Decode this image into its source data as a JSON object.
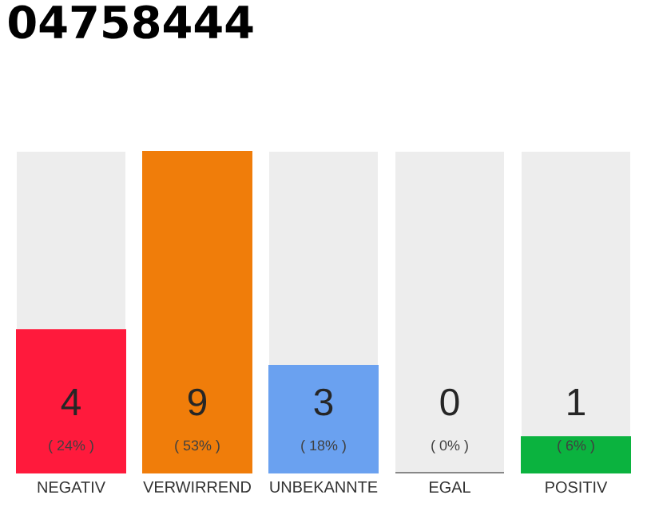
{
  "chart_data": {
    "type": "bar",
    "title": "04758444",
    "categories": [
      "NEGATIV",
      "VERWIRREND",
      "UNBEKANNTE",
      "EGAL",
      "POSITIV"
    ],
    "values": [
      4,
      9,
      3,
      0,
      1
    ],
    "colors": [
      "#ff1a3c",
      "#f07d0a",
      "#6aa1f0",
      "#888888",
      "#0bb33f"
    ],
    "bands": [
      {
        "axis": "x",
        "from": "NEGATIV",
        "to": "NEGATIV",
        "color": "#ededed"
      },
      {
        "axis": "x",
        "from": "UNBEKANNTE",
        "to": "UNBEKANNTE",
        "color": "#ededed"
      },
      {
        "axis": "x",
        "from": "EGAL",
        "to": "EGAL",
        "color": "#ededed"
      },
      {
        "axis": "x",
        "from": "POSITIV",
        "to": "POSITIV",
        "color": "#ededed"
      }
    ],
    "ylim": [
      0,
      9
    ],
    "tick_labels": "x",
    "data_labels": true,
    "annotations": [
      "( 24% )",
      "( 53% )",
      "( 18% )",
      "( 0% )",
      "( 6% )"
    ]
  }
}
